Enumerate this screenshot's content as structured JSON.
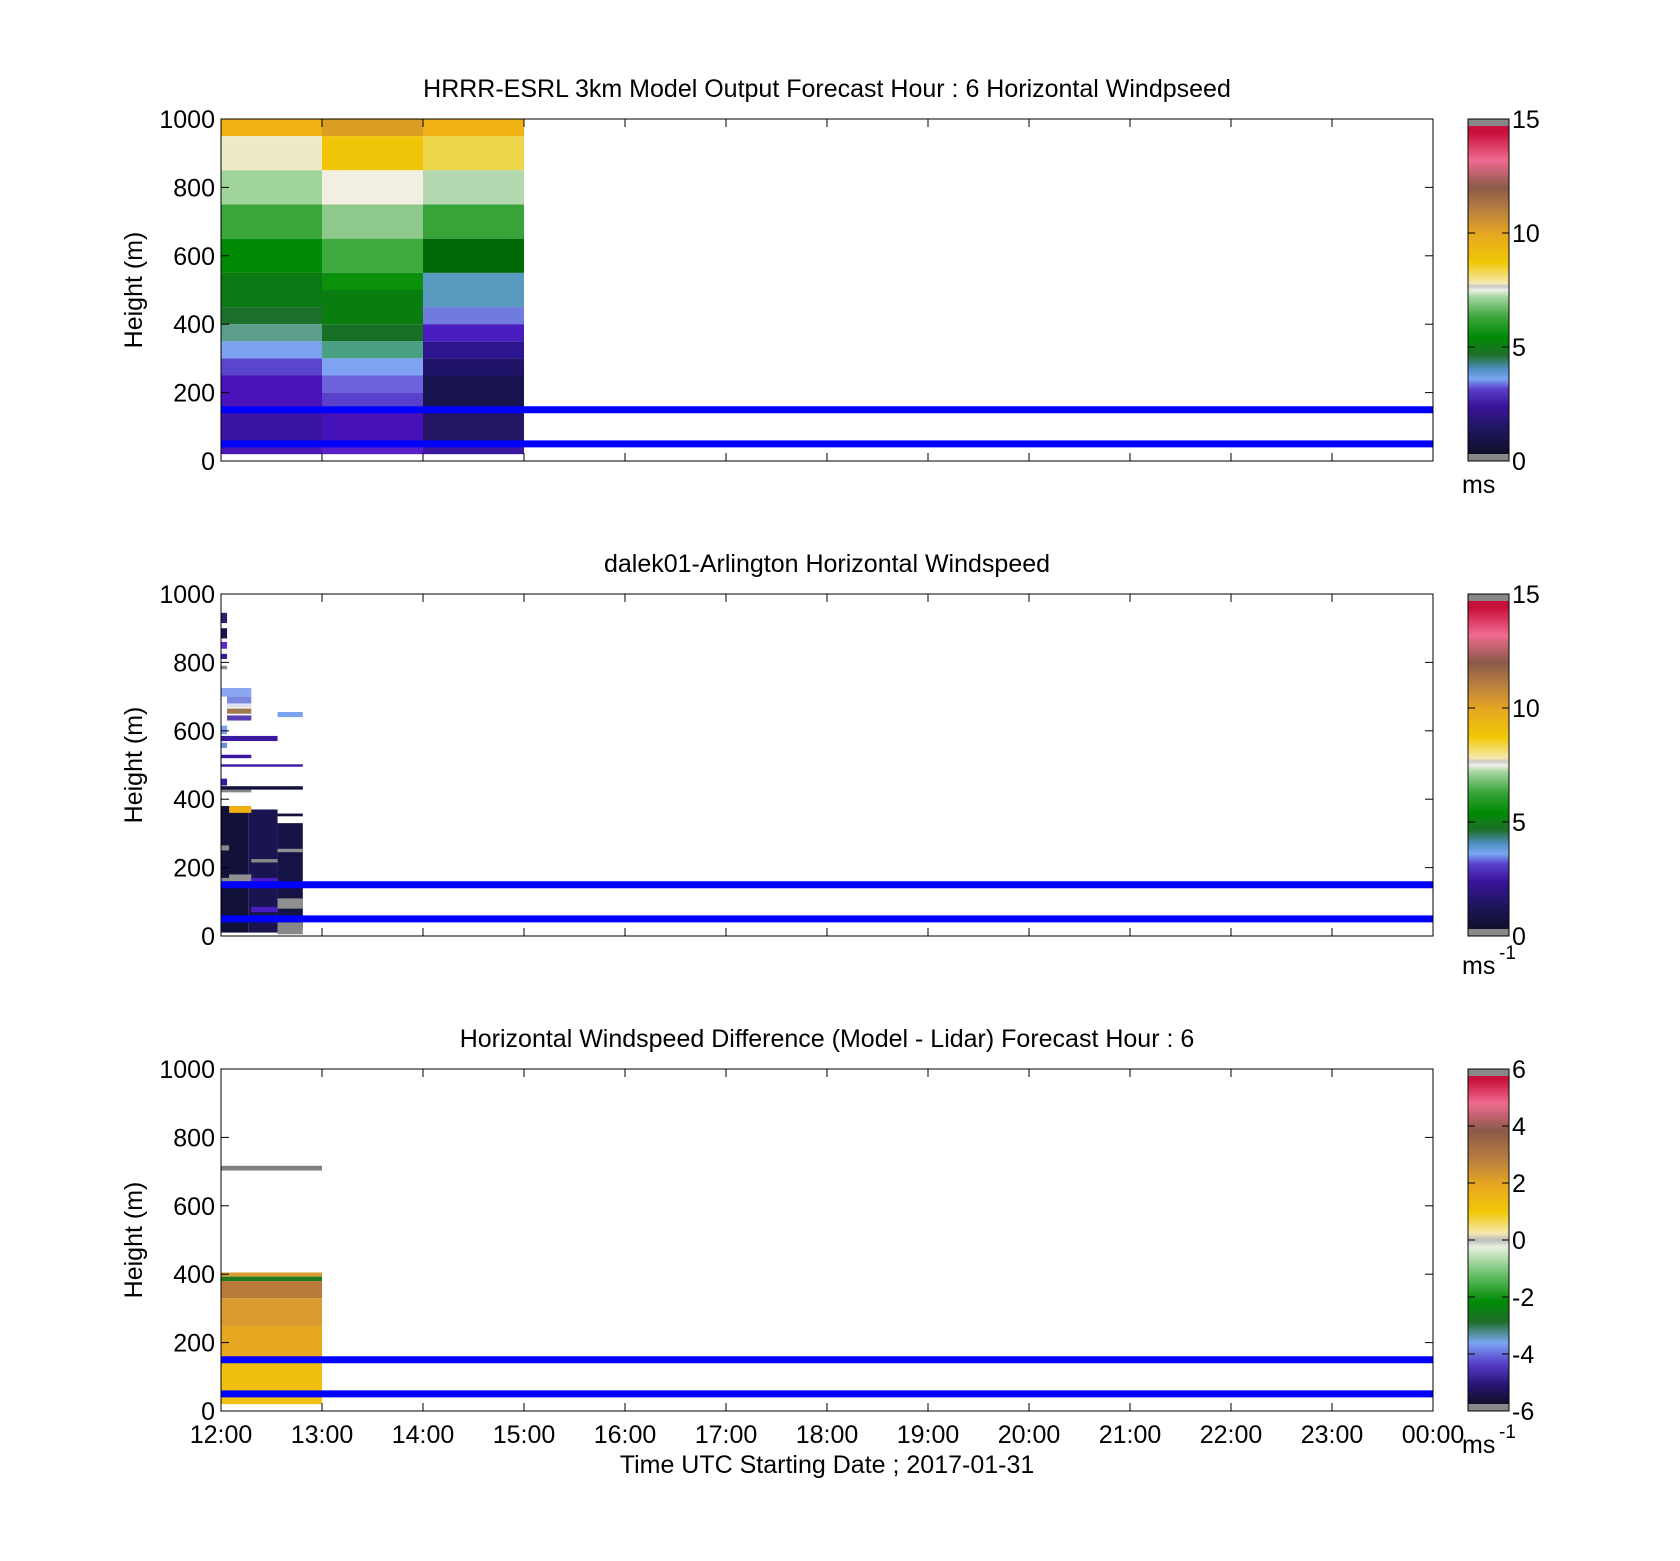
{
  "chart_data": [
    {
      "type": "heatmap",
      "title": "HRRR-ESRL 3km Model Output   Forecast Hour : 6 Horizontal Windpseed",
      "ylabel": "Height (m)",
      "ylim": [
        0,
        1000
      ],
      "yticks": [
        "0",
        "200",
        "400",
        "600",
        "800",
        "1000"
      ],
      "xticks": [
        "12:00",
        "13:00",
        "14:00",
        "15:00",
        "16:00",
        "17:00",
        "18:00",
        "19:00",
        "20:00",
        "21:00",
        "22:00",
        "23:00",
        "00:00"
      ],
      "colorbar": {
        "range": [
          0,
          15
        ],
        "ticks": [
          "0",
          "5",
          "10",
          "15"
        ],
        "unit": "ms",
        "unit_exp": ""
      },
      "reference_lines": [
        50,
        150
      ],
      "columns": [
        {
          "t0": 0,
          "t1": 1,
          "cells": [
            {
              "y0": 950,
              "y1": 1000,
              "color": "#efb113"
            },
            {
              "y0": 850,
              "y1": 950,
              "color": "#efeac6"
            },
            {
              "y0": 750,
              "y1": 850,
              "color": "#9fd49a"
            },
            {
              "y0": 650,
              "y1": 750,
              "color": "#3aa53a"
            },
            {
              "y0": 550,
              "y1": 650,
              "color": "#008a05"
            },
            {
              "y0": 450,
              "y1": 550,
              "color": "#0b7a15"
            },
            {
              "y0": 400,
              "y1": 450,
              "color": "#1d6f2c"
            },
            {
              "y0": 350,
              "y1": 400,
              "color": "#5a9e8b"
            },
            {
              "y0": 300,
              "y1": 350,
              "color": "#7da0ef"
            },
            {
              "y0": 250,
              "y1": 300,
              "color": "#5a46cc"
            },
            {
              "y0": 150,
              "y1": 250,
              "color": "#4813b8"
            },
            {
              "y0": 50,
              "y1": 150,
              "color": "#3a14a3"
            },
            {
              "y0": 20,
              "y1": 50,
              "color": "#4a17b5"
            }
          ]
        },
        {
          "t0": 1,
          "t1": 2,
          "cells": [
            {
              "y0": 950,
              "y1": 1000,
              "color": "#db9d22"
            },
            {
              "y0": 850,
              "y1": 950,
              "color": "#f0c508"
            },
            {
              "y0": 750,
              "y1": 850,
              "color": "#f2efe2"
            },
            {
              "y0": 650,
              "y1": 750,
              "color": "#8fc88b"
            },
            {
              "y0": 550,
              "y1": 650,
              "color": "#3caa3e"
            },
            {
              "y0": 500,
              "y1": 550,
              "color": "#0a900a"
            },
            {
              "y0": 400,
              "y1": 500,
              "color": "#0a7d10"
            },
            {
              "y0": 350,
              "y1": 400,
              "color": "#166f25"
            },
            {
              "y0": 300,
              "y1": 350,
              "color": "#4aa083"
            },
            {
              "y0": 250,
              "y1": 300,
              "color": "#7fa3f2"
            },
            {
              "y0": 200,
              "y1": 250,
              "color": "#6b62dc"
            },
            {
              "y0": 150,
              "y1": 200,
              "color": "#5a41cc"
            },
            {
              "y0": 50,
              "y1": 150,
              "color": "#4711b9"
            },
            {
              "y0": 20,
              "y1": 50,
              "color": "#5a1fc8"
            }
          ]
        },
        {
          "t0": 2,
          "t1": 3,
          "cells": [
            {
              "y0": 950,
              "y1": 1000,
              "color": "#efb113"
            },
            {
              "y0": 850,
              "y1": 950,
              "color": "#edd64a"
            },
            {
              "y0": 750,
              "y1": 850,
              "color": "#b4d9b0"
            },
            {
              "y0": 650,
              "y1": 750,
              "color": "#38a338"
            },
            {
              "y0": 550,
              "y1": 650,
              "color": "#006b06"
            },
            {
              "y0": 450,
              "y1": 550,
              "color": "#5b9ac0"
            },
            {
              "y0": 400,
              "y1": 450,
              "color": "#707be0"
            },
            {
              "y0": 350,
              "y1": 400,
              "color": "#4a1dc0"
            },
            {
              "y0": 300,
              "y1": 350,
              "color": "#2d1590"
            },
            {
              "y0": 250,
              "y1": 300,
              "color": "#201469"
            },
            {
              "y0": 150,
              "y1": 250,
              "color": "#181450"
            },
            {
              "y0": 50,
              "y1": 150,
              "color": "#241665"
            },
            {
              "y0": 20,
              "y1": 50,
              "color": "#3a18a0"
            }
          ]
        }
      ]
    },
    {
      "type": "heatmap",
      "title": "dalek01-Arlington  Horizontal Windspeed",
      "ylabel": "Height (m)",
      "ylim": [
        0,
        1000
      ],
      "yticks": [
        "0",
        "200",
        "400",
        "600",
        "800",
        "1000"
      ],
      "xticks": [
        "12:00",
        "13:00",
        "14:00",
        "15:00",
        "16:00",
        "17:00",
        "18:00",
        "19:00",
        "20:00",
        "21:00",
        "22:00",
        "23:00",
        "00:00"
      ],
      "colorbar": {
        "range": [
          0,
          15
        ],
        "ticks": [
          "0",
          "5",
          "10",
          "15"
        ],
        "unit": "ms",
        "unit_exp": "-1"
      },
      "reference_lines": [
        50,
        150
      ],
      "blocks": [
        {
          "t0": 0.0,
          "t1": 0.27,
          "y0": 10,
          "y1": 380,
          "color": "#11113a"
        },
        {
          "t0": 0.27,
          "t1": 0.56,
          "y0": 10,
          "y1": 370,
          "color": "#1a1550"
        },
        {
          "t0": 0.56,
          "t1": 0.81,
          "y0": 20,
          "y1": 330,
          "color": "#151245"
        },
        {
          "t0": 0.56,
          "t1": 0.81,
          "y0": 5,
          "y1": 40,
          "color": "#888888"
        },
        {
          "t0": 0.56,
          "t1": 0.81,
          "y0": 80,
          "y1": 110,
          "color": "#909090"
        },
        {
          "t0": 0.0,
          "t1": 0.08,
          "y0": 150,
          "y1": 170,
          "color": "#888888"
        },
        {
          "t0": 0.0,
          "t1": 0.08,
          "y0": 250,
          "y1": 265,
          "color": "#888888"
        },
        {
          "t0": 0.08,
          "t1": 0.3,
          "y0": 160,
          "y1": 180,
          "color": "#909090"
        },
        {
          "t0": 0.3,
          "t1": 0.56,
          "y0": 215,
          "y1": 225,
          "color": "#888888"
        },
        {
          "t0": 0.56,
          "t1": 0.81,
          "y0": 245,
          "y1": 255,
          "color": "#909090"
        },
        {
          "t0": 0.3,
          "t1": 0.56,
          "y0": 160,
          "y1": 170,
          "color": "#4a1dc0"
        },
        {
          "t0": 0.3,
          "t1": 0.56,
          "y0": 70,
          "y1": 85,
          "color": "#4a1dc0"
        },
        {
          "t0": 0.08,
          "t1": 0.3,
          "y0": 360,
          "y1": 380,
          "color": "#f0b010"
        },
        {
          "t0": 0.0,
          "t1": 0.3,
          "y0": 420,
          "y1": 430,
          "color": "#888888"
        },
        {
          "t0": 0.0,
          "t1": 0.81,
          "y0": 428,
          "y1": 438,
          "color": "#11113a"
        },
        {
          "t0": 0.56,
          "t1": 0.81,
          "y0": 350,
          "y1": 358,
          "color": "#11113a"
        },
        {
          "t0": 0.0,
          "t1": 0.06,
          "y0": 440,
          "y1": 460,
          "color": "#3a18a0"
        },
        {
          "t0": 0.0,
          "t1": 0.81,
          "y0": 495,
          "y1": 502,
          "color": "#3a18a0"
        },
        {
          "t0": 0.0,
          "t1": 0.3,
          "y0": 520,
          "y1": 530,
          "color": "#3a18a0"
        },
        {
          "t0": 0.0,
          "t1": 0.06,
          "y0": 550,
          "y1": 565,
          "color": "#6b8fe0"
        },
        {
          "t0": 0.0,
          "t1": 0.56,
          "y0": 570,
          "y1": 585,
          "color": "#3a18a0"
        },
        {
          "t0": 0.0,
          "t1": 0.06,
          "y0": 590,
          "y1": 615,
          "color": "#7aa3f0"
        },
        {
          "t0": 0.06,
          "t1": 0.3,
          "y0": 630,
          "y1": 645,
          "color": "#5a3fb0"
        },
        {
          "t0": 0.06,
          "t1": 0.3,
          "y0": 650,
          "y1": 665,
          "color": "#a07850"
        },
        {
          "t0": 0.06,
          "t1": 0.3,
          "y0": 668,
          "y1": 680,
          "color": "#e0e0f0"
        },
        {
          "t0": 0.06,
          "t1": 0.3,
          "y0": 680,
          "y1": 700,
          "color": "#7a88e0"
        },
        {
          "t0": 0.0,
          "t1": 0.3,
          "y0": 700,
          "y1": 725,
          "color": "#8aa6f0"
        },
        {
          "t0": 0.56,
          "t1": 0.81,
          "y0": 640,
          "y1": 655,
          "color": "#7aa3f0"
        },
        {
          "t0": 0.0,
          "t1": 0.06,
          "y0": 780,
          "y1": 790,
          "color": "#888888"
        },
        {
          "t0": 0.0,
          "t1": 0.06,
          "y0": 810,
          "y1": 825,
          "color": "#3a18a0"
        },
        {
          "t0": 0.0,
          "t1": 0.06,
          "y0": 840,
          "y1": 860,
          "color": "#5a2ad0"
        },
        {
          "t0": 0.0,
          "t1": 0.06,
          "y0": 870,
          "y1": 900,
          "color": "#1a1550"
        },
        {
          "t0": 0.0,
          "t1": 0.06,
          "y0": 915,
          "y1": 945,
          "color": "#2a2070"
        }
      ]
    },
    {
      "type": "heatmap",
      "title": "Horizontal Windspeed Difference (Model - Lidar) Forecast Hour : 6",
      "ylabel": "Height (m)",
      "xlabel": "Time UTC  Starting Date ; 2017-01-31",
      "ylim": [
        0,
        1000
      ],
      "yticks": [
        "0",
        "200",
        "400",
        "600",
        "800",
        "1000"
      ],
      "xticks": [
        "12:00",
        "13:00",
        "14:00",
        "15:00",
        "16:00",
        "17:00",
        "18:00",
        "19:00",
        "20:00",
        "21:00",
        "22:00",
        "23:00",
        "00:00"
      ],
      "colorbar": {
        "range": [
          -6,
          6
        ],
        "ticks": [
          "-6",
          "-4",
          "-2",
          "0",
          "2",
          "4",
          "6"
        ],
        "unit": "ms",
        "unit_exp": "-1"
      },
      "reference_lines": [
        50,
        150
      ],
      "blocks": [
        {
          "t0": 0,
          "t1": 1,
          "y0": 20,
          "y1": 150,
          "color": "#efc010"
        },
        {
          "t0": 0,
          "t1": 1,
          "y0": 150,
          "y1": 250,
          "color": "#e6a820"
        },
        {
          "t0": 0,
          "t1": 1,
          "y0": 250,
          "y1": 330,
          "color": "#d99a30"
        },
        {
          "t0": 0,
          "t1": 1,
          "y0": 330,
          "y1": 380,
          "color": "#b97a3a"
        },
        {
          "t0": 0,
          "t1": 1,
          "y0": 380,
          "y1": 393,
          "color": "#1f7a1f"
        },
        {
          "t0": 0,
          "t1": 1,
          "y0": 393,
          "y1": 405,
          "color": "#d99a30"
        },
        {
          "t0": 0,
          "t1": 1,
          "y0": 703,
          "y1": 717,
          "color": "#808080"
        }
      ]
    }
  ]
}
